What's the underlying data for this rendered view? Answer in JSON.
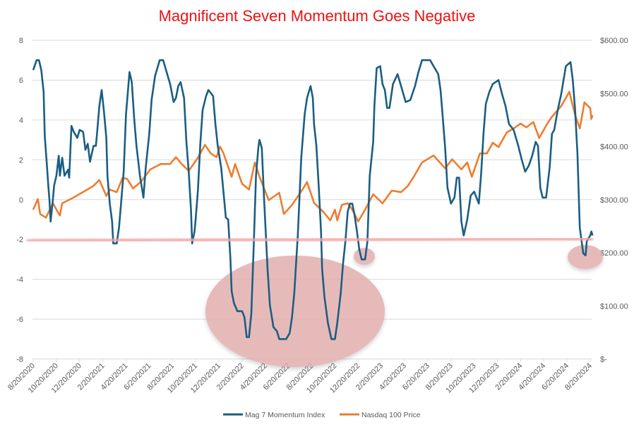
{
  "chart_data": {
    "type": "line",
    "title": "Magnificent Seven Momentum Goes Negative",
    "x_unit": "months since 8/20/2020",
    "x_tick_labels": [
      "8/20/2020",
      "10/20/2020",
      "12/20/2020",
      "2/20/2021",
      "4/20/2021",
      "6/20/2021",
      "8/20/2021",
      "10/20/2021",
      "12/20/2021",
      "2/20/2022",
      "4/20/2022",
      "6/20/2022",
      "8/20/2022",
      "10/20/2022",
      "12/20/2022",
      "2/20/2023",
      "4/20/2023",
      "6/20/2023",
      "8/20/2023",
      "10/20/2023",
      "12/20/2023",
      "2/20/2024",
      "4/20/2024",
      "6/20/2024",
      "8/20/2024"
    ],
    "xlim": [
      0,
      48
    ],
    "y_left": {
      "ylim": [
        -8,
        8
      ],
      "ticks": [
        "8",
        "6",
        "4",
        "2",
        "0",
        "-2",
        "-4",
        "-6",
        "-8"
      ],
      "ticks_values": [
        8,
        6,
        4,
        2,
        0,
        -2,
        -4,
        -6,
        -8
      ]
    },
    "y_right": {
      "ylim": [
        0,
        600
      ],
      "ticks": [
        "$600.00",
        "$500.00",
        "$400.00",
        "$300.00",
        "$200.00",
        "$100.00",
        "$-"
      ],
      "ticks_values": [
        600,
        500,
        400,
        300,
        200,
        100,
        0
      ]
    },
    "grid": true,
    "legend_position": "bottom",
    "series": [
      {
        "name": "Mag 7 Momentum Index",
        "axis": "left",
        "color": "#1a5e83",
        "points": [
          [
            0,
            6.5
          ],
          [
            0.3,
            7.0
          ],
          [
            0.5,
            7.0
          ],
          [
            0.7,
            6.5
          ],
          [
            0.9,
            5.4
          ],
          [
            1.0,
            3.2
          ],
          [
            1.2,
            1.6
          ],
          [
            1.3,
            0.7
          ],
          [
            1.4,
            0
          ],
          [
            1.5,
            -1.1
          ],
          [
            1.7,
            0
          ],
          [
            1.8,
            0.7
          ],
          [
            2.0,
            1.2
          ],
          [
            2.2,
            2.2
          ],
          [
            2.3,
            1.2
          ],
          [
            2.5,
            2.1
          ],
          [
            2.7,
            1.2
          ],
          [
            3.0,
            1.5
          ],
          [
            3.1,
            1.1
          ],
          [
            3.3,
            3.7
          ],
          [
            3.5,
            3.4
          ],
          [
            3.8,
            3.1
          ],
          [
            4.0,
            3.5
          ],
          [
            4.3,
            3.4
          ],
          [
            4.5,
            2.5
          ],
          [
            4.7,
            2.8
          ],
          [
            4.9,
            1.9
          ],
          [
            5.2,
            2.7
          ],
          [
            5.4,
            2.7
          ],
          [
            5.5,
            3.3
          ],
          [
            5.7,
            4.7
          ],
          [
            5.9,
            5.5
          ],
          [
            6.1,
            4.4
          ],
          [
            6.3,
            3.1
          ],
          [
            6.4,
            1.2
          ],
          [
            6.6,
            -0.2
          ],
          [
            6.8,
            -1.1
          ],
          [
            6.9,
            -2.2
          ],
          [
            7.2,
            -2.2
          ],
          [
            7.4,
            -1.4
          ],
          [
            7.6,
            0
          ],
          [
            7.8,
            1.4
          ],
          [
            8.0,
            4.3
          ],
          [
            8.2,
            5.7
          ],
          [
            8.3,
            6.4
          ],
          [
            8.5,
            5.9
          ],
          [
            8.7,
            4.1
          ],
          [
            8.9,
            2.7
          ],
          [
            9.2,
            1.2
          ],
          [
            9.5,
            0.1
          ],
          [
            9.7,
            1.6
          ],
          [
            10.0,
            3.3
          ],
          [
            10.2,
            5.0
          ],
          [
            10.5,
            6.2
          ],
          [
            10.9,
            7.0
          ],
          [
            11.2,
            7.0
          ],
          [
            11.5,
            6.4
          ],
          [
            11.8,
            5.8
          ],
          [
            12.1,
            4.9
          ],
          [
            12.3,
            5.1
          ],
          [
            12.5,
            5.7
          ],
          [
            12.7,
            5.9
          ],
          [
            13.0,
            5.1
          ],
          [
            13.2,
            2.9
          ],
          [
            13.4,
            1.4
          ],
          [
            13.6,
            -0.5
          ],
          [
            13.7,
            -2.2
          ],
          [
            13.9,
            -1.6
          ],
          [
            14.0,
            -1.0
          ],
          [
            14.2,
            0.5
          ],
          [
            14.4,
            2.8
          ],
          [
            14.6,
            4.5
          ],
          [
            14.9,
            5.2
          ],
          [
            15.1,
            5.5
          ],
          [
            15.5,
            5.2
          ],
          [
            15.7,
            3.8
          ],
          [
            15.9,
            2.7
          ],
          [
            16.2,
            1.6
          ],
          [
            16.6,
            -0.9
          ],
          [
            16.8,
            -1.0
          ],
          [
            17.0,
            -3.0
          ],
          [
            17.1,
            -4.6
          ],
          [
            17.3,
            -5.2
          ],
          [
            17.6,
            -5.6
          ],
          [
            18.0,
            -5.6
          ],
          [
            18.2,
            -5.9
          ],
          [
            18.4,
            -6.9
          ],
          [
            18.6,
            -6.9
          ],
          [
            18.8,
            -5.7
          ],
          [
            19.0,
            -2.4
          ],
          [
            19.2,
            1.2
          ],
          [
            19.4,
            2.6
          ],
          [
            19.5,
            3.0
          ],
          [
            19.7,
            2.6
          ],
          [
            19.9,
            0
          ],
          [
            20.2,
            -3.5
          ],
          [
            20.4,
            -5.3
          ],
          [
            20.7,
            -6.4
          ],
          [
            21.0,
            -6.6
          ],
          [
            21.2,
            -7.0
          ],
          [
            21.8,
            -7.0
          ],
          [
            22.1,
            -6.7
          ],
          [
            22.3,
            -5.9
          ],
          [
            22.5,
            -4.7
          ],
          [
            22.8,
            -1.8
          ],
          [
            23.1,
            2.1
          ],
          [
            23.4,
            4.3
          ],
          [
            23.6,
            5.1
          ],
          [
            23.9,
            5.7
          ],
          [
            24.1,
            5.1
          ],
          [
            24.2,
            3.8
          ],
          [
            24.4,
            2.7
          ],
          [
            24.6,
            0.7
          ],
          [
            24.8,
            -1.6
          ],
          [
            24.9,
            -3.5
          ],
          [
            25.1,
            -4.9
          ],
          [
            25.4,
            -6.2
          ],
          [
            25.7,
            -7.0
          ],
          [
            26.0,
            -7.0
          ],
          [
            26.2,
            -6.2
          ],
          [
            26.5,
            -4.7
          ],
          [
            26.7,
            -3.2
          ],
          [
            26.9,
            -2.1
          ],
          [
            27.1,
            -0.6
          ],
          [
            27.3,
            -0.2
          ],
          [
            27.5,
            -0.2
          ],
          [
            27.7,
            -0.8
          ],
          [
            27.9,
            -1.6
          ],
          [
            28.1,
            -2.5
          ],
          [
            28.3,
            -3.0
          ],
          [
            28.6,
            -3.0
          ],
          [
            28.8,
            -2.1
          ],
          [
            29.0,
            1.2
          ],
          [
            29.3,
            2.9
          ],
          [
            29.4,
            4.7
          ],
          [
            29.6,
            6.6
          ],
          [
            29.9,
            6.7
          ],
          [
            30.1,
            5.8
          ],
          [
            30.3,
            5.5
          ],
          [
            30.5,
            4.6
          ],
          [
            30.7,
            4.6
          ],
          [
            31.0,
            5.8
          ],
          [
            31.4,
            6.3
          ],
          [
            31.7,
            5.7
          ],
          [
            32.1,
            4.9
          ],
          [
            32.5,
            5.0
          ],
          [
            32.9,
            5.7
          ],
          [
            33.2,
            6.4
          ],
          [
            33.5,
            7.0
          ],
          [
            34.2,
            7.0
          ],
          [
            34.5,
            6.7
          ],
          [
            34.9,
            6.3
          ],
          [
            35.1,
            5.5
          ],
          [
            35.3,
            4.1
          ],
          [
            35.5,
            2.6
          ],
          [
            35.7,
            0.6
          ],
          [
            36.0,
            -0.2
          ],
          [
            36.3,
            0.1
          ],
          [
            36.5,
            1.1
          ],
          [
            36.7,
            1.1
          ],
          [
            36.9,
            -1.1
          ],
          [
            37.1,
            -1.8
          ],
          [
            37.4,
            -1.0
          ],
          [
            37.7,
            0.2
          ],
          [
            38.0,
            0.4
          ],
          [
            38.4,
            -0.2
          ],
          [
            38.6,
            1.3
          ],
          [
            38.8,
            3.3
          ],
          [
            39.0,
            4.8
          ],
          [
            39.3,
            5.4
          ],
          [
            39.6,
            5.8
          ],
          [
            40.1,
            6.0
          ],
          [
            40.4,
            5.3
          ],
          [
            40.7,
            4.7
          ],
          [
            41.0,
            3.8
          ],
          [
            41.4,
            3.5
          ],
          [
            41.8,
            2.7
          ],
          [
            42.1,
            2.0
          ],
          [
            42.4,
            1.4
          ],
          [
            42.7,
            1.7
          ],
          [
            43.0,
            2.2
          ],
          [
            43.3,
            2.9
          ],
          [
            43.5,
            2.7
          ],
          [
            43.7,
            0.6
          ],
          [
            43.9,
            0.1
          ],
          [
            44.2,
            0.1
          ],
          [
            44.5,
            1.6
          ],
          [
            44.7,
            3.3
          ],
          [
            44.9,
            3.5
          ],
          [
            45.2,
            4.5
          ],
          [
            45.5,
            5.3
          ],
          [
            45.9,
            6.7
          ],
          [
            46.3,
            6.9
          ],
          [
            46.5,
            6.0
          ],
          [
            46.7,
            4.5
          ],
          [
            46.9,
            2.3
          ],
          [
            47.1,
            -1.4
          ],
          [
            47.4,
            -2.7
          ],
          [
            47.6,
            -2.8
          ],
          [
            47.7,
            -2.1
          ],
          [
            48.0,
            -1.8
          ],
          [
            48.1,
            -1.6
          ],
          [
            48.2,
            -1.8
          ]
        ]
      },
      {
        "name": "Nasdaq 100 Price",
        "axis": "right",
        "color": "#ed7d31",
        "points": [
          [
            0,
            281
          ],
          [
            0.4,
            301
          ],
          [
            0.6,
            273
          ],
          [
            1.1,
            266
          ],
          [
            1.7,
            293
          ],
          [
            2.3,
            270
          ],
          [
            2.5,
            293
          ],
          [
            3.4,
            303
          ],
          [
            4.5,
            317
          ],
          [
            5.2,
            326
          ],
          [
            5.7,
            337
          ],
          [
            6.3,
            307
          ],
          [
            6.6,
            319
          ],
          [
            7.2,
            314
          ],
          [
            7.7,
            341
          ],
          [
            8.1,
            339
          ],
          [
            8.6,
            321
          ],
          [
            9.3,
            334
          ],
          [
            10.1,
            357
          ],
          [
            11.0,
            367
          ],
          [
            11.8,
            367
          ],
          [
            12.3,
            380
          ],
          [
            12.8,
            367
          ],
          [
            13.4,
            354
          ],
          [
            14.2,
            379
          ],
          [
            14.8,
            403
          ],
          [
            15.3,
            387
          ],
          [
            15.8,
            380
          ],
          [
            16.1,
            400
          ],
          [
            16.4,
            387
          ],
          [
            17.1,
            343
          ],
          [
            17.4,
            367
          ],
          [
            18.0,
            330
          ],
          [
            18.6,
            319
          ],
          [
            19.1,
            370
          ],
          [
            19.5,
            343
          ],
          [
            20.3,
            299
          ],
          [
            21.2,
            313
          ],
          [
            21.6,
            273
          ],
          [
            22.3,
            290
          ],
          [
            23.2,
            319
          ],
          [
            23.6,
            333
          ],
          [
            24.2,
            294
          ],
          [
            25.0,
            277
          ],
          [
            25.6,
            261
          ],
          [
            26.0,
            281
          ],
          [
            26.2,
            261
          ],
          [
            26.6,
            290
          ],
          [
            27.1,
            293
          ],
          [
            27.5,
            281
          ],
          [
            28.0,
            259
          ],
          [
            28.6,
            281
          ],
          [
            29.3,
            310
          ],
          [
            30.1,
            293
          ],
          [
            30.9,
            317
          ],
          [
            31.7,
            314
          ],
          [
            32.3,
            326
          ],
          [
            32.9,
            347
          ],
          [
            33.5,
            370
          ],
          [
            34.5,
            383
          ],
          [
            35.5,
            359
          ],
          [
            36.1,
            376
          ],
          [
            36.9,
            357
          ],
          [
            37.4,
            370
          ],
          [
            37.8,
            343
          ],
          [
            38.5,
            387
          ],
          [
            39.1,
            387
          ],
          [
            39.6,
            407
          ],
          [
            40.1,
            399
          ],
          [
            40.8,
            426
          ],
          [
            41.4,
            434
          ],
          [
            42.0,
            443
          ],
          [
            42.5,
            436
          ],
          [
            43.1,
            446
          ],
          [
            43.6,
            416
          ],
          [
            44.3,
            443
          ],
          [
            44.7,
            456
          ],
          [
            45.5,
            476
          ],
          [
            46.2,
            503
          ],
          [
            46.7,
            459
          ],
          [
            47.1,
            434
          ],
          [
            47.5,
            483
          ],
          [
            48.0,
            472
          ],
          [
            48.1,
            452
          ],
          [
            48.2,
            459
          ]
        ]
      }
    ],
    "annotations": [
      {
        "type": "horizontal-line",
        "axis": "left",
        "value": -2.05,
        "color": "#f4a6a6"
      },
      {
        "type": "ellipse-highlight",
        "color": "#e3aeae",
        "region": "2022 lows"
      },
      {
        "type": "ellipse-highlight",
        "color": "#e3aeae",
        "region": "early 2023 dip"
      },
      {
        "type": "ellipse-highlight",
        "color": "#e3aeae",
        "region": "mid 2024 dip"
      }
    ]
  }
}
